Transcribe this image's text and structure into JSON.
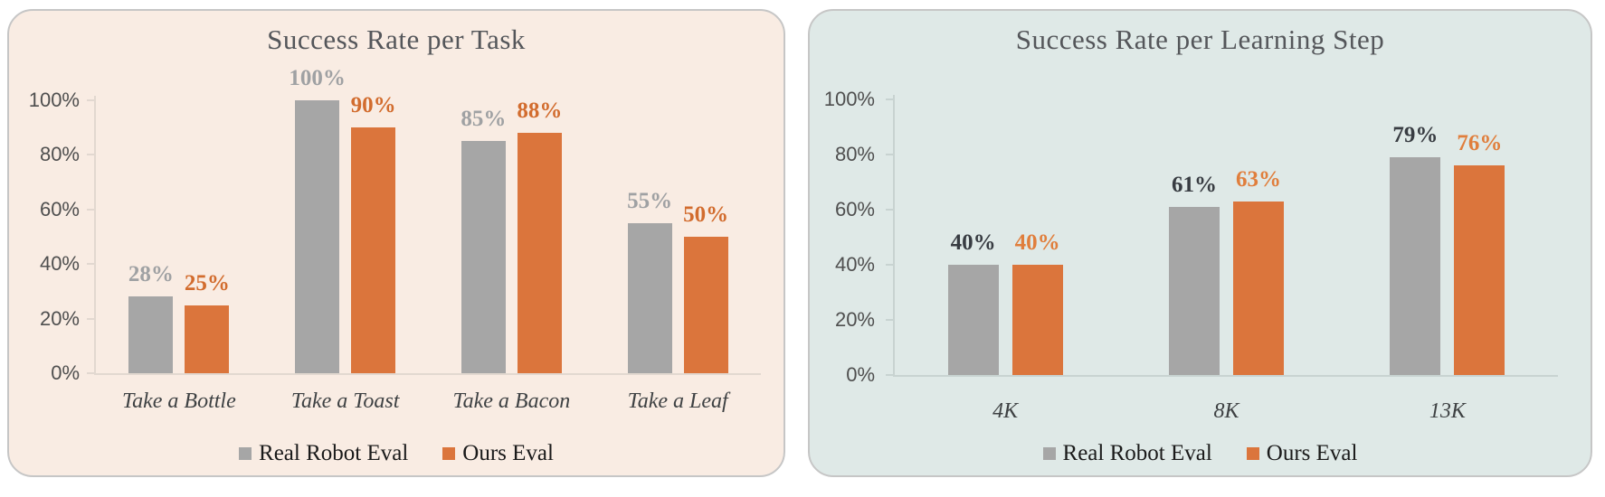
{
  "page": {
    "background": "#FFFFFF"
  },
  "chart_data": [
    {
      "type": "bar",
      "name": "success-rate-per-task",
      "title": "Success Rate per Task",
      "categories": [
        "Take a Bottle",
        "Take a Toast",
        "Take a Bacon",
        "Take a Leaf"
      ],
      "series": [
        {
          "name": "Real Robot Eval",
          "color": "#A6A6A6",
          "label_color": "#9FA1A3",
          "values": [
            28,
            100,
            85,
            55
          ],
          "value_labels": [
            "28%",
            "100%",
            "85%",
            "55%"
          ]
        },
        {
          "name": "Ours Eval",
          "color": "#DB753C",
          "label_color": "#D26C2E",
          "values": [
            25,
            90,
            88,
            50
          ],
          "value_labels": [
            "25%",
            "90%",
            "88%",
            "50%"
          ]
        }
      ],
      "xlabel": "",
      "ylabel": "",
      "ylim": [
        0,
        100
      ],
      "y_ticks": [
        "0%",
        "20%",
        "40%",
        "60%",
        "80%",
        "100%"
      ],
      "grid": false,
      "legend_position": "bottom",
      "panel": {
        "background": "#F9ECE3",
        "border": "#C6C6C6",
        "axis_color": "#E2D8D0",
        "title_color": "#54565A",
        "tick_label_color": "#4F4F4F",
        "category_label_color": "#3E4143",
        "legend_text_color": "#1A1A1A"
      }
    },
    {
      "type": "bar",
      "name": "success-rate-per-learning-step",
      "title": "Success Rate per Learning Step",
      "categories": [
        "4K",
        "8K",
        "13K"
      ],
      "series": [
        {
          "name": "Real Robot Eval",
          "color": "#A6A6A6",
          "label_color": "#383C42",
          "values": [
            40,
            61,
            79
          ],
          "value_labels": [
            "40%",
            "61%",
            "79%"
          ]
        },
        {
          "name": "Ours Eval",
          "color": "#DB753C",
          "label_color": "#E07E3C",
          "values": [
            40,
            63,
            76
          ],
          "value_labels": [
            "40%",
            "63%",
            "76%"
          ]
        }
      ],
      "xlabel": "",
      "ylabel": "",
      "ylim": [
        0,
        100
      ],
      "y_ticks": [
        "0%",
        "20%",
        "40%",
        "60%",
        "80%",
        "100%"
      ],
      "grid": false,
      "legend_position": "bottom",
      "panel": {
        "background": "#DFE9E7",
        "border": "#C6C6C6",
        "axis_color": "#C8D3D1",
        "title_color": "#54565A",
        "tick_label_color": "#4F4F4F",
        "category_label_color": "#3E4143",
        "legend_text_color": "#1A1A1A"
      }
    }
  ]
}
